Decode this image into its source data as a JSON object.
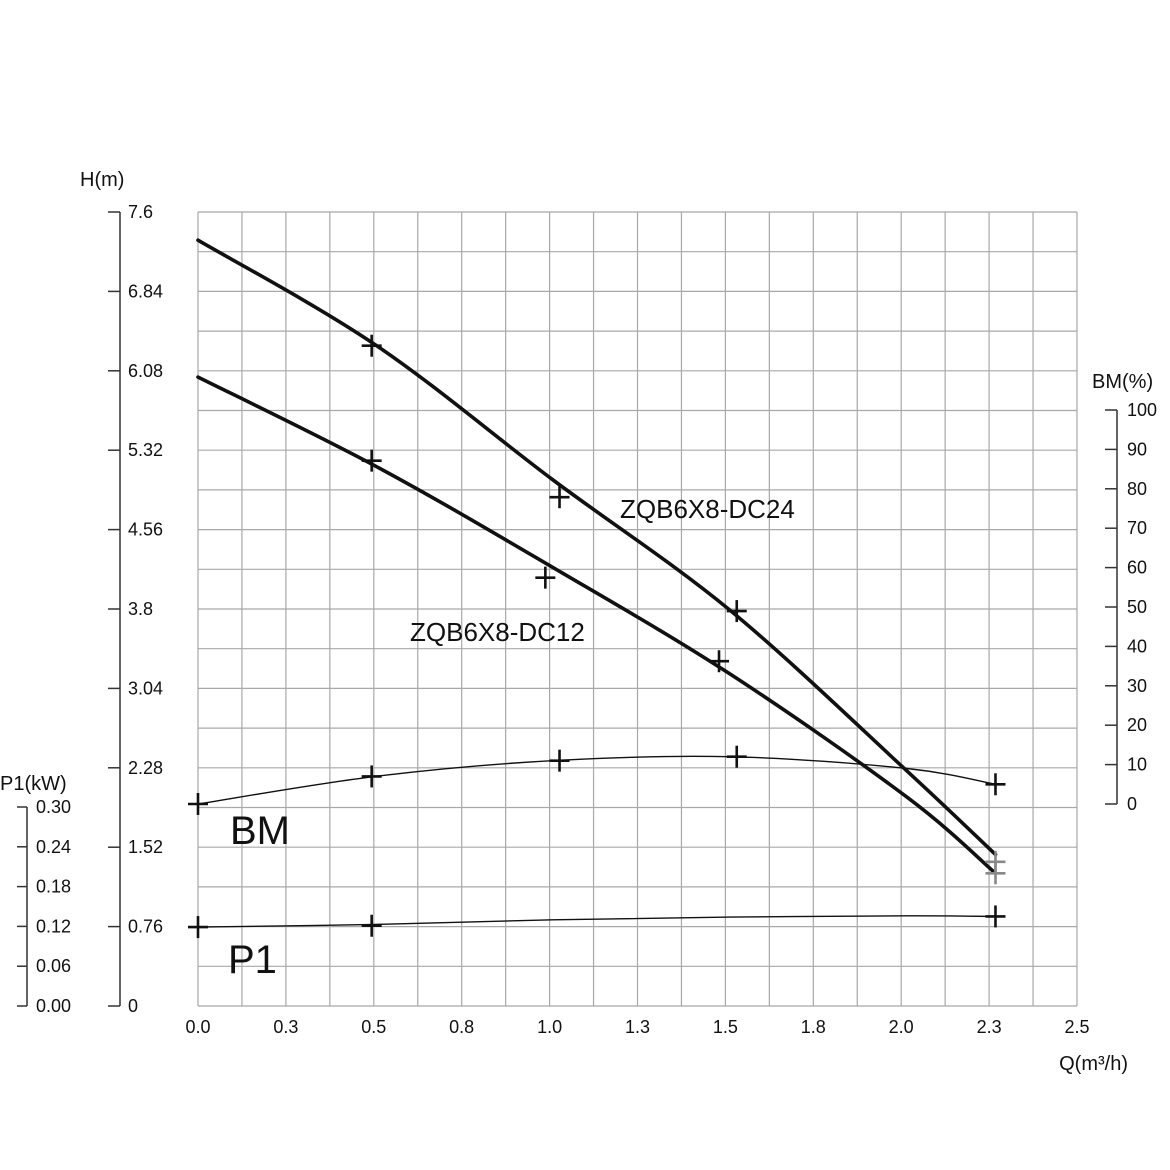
{
  "chart_data": {
    "type": "line",
    "x_axis": {
      "label": "Q(m³/h)",
      "range": [
        0,
        2.5
      ],
      "ticks": [
        "0.0",
        "0.3",
        "0.5",
        "0.8",
        "1.0",
        "1.3",
        "1.5",
        "1.8",
        "2.0",
        "2.3",
        "2.5"
      ]
    },
    "y_axis_head": {
      "label": "H(m)",
      "range": [
        0,
        7.6
      ],
      "ticks": [
        "7.6",
        "6.84",
        "6.08",
        "5.32",
        "4.56",
        "3.8",
        "3.04",
        "2.28",
        "1.52",
        "0.76",
        "0"
      ]
    },
    "y_axis_efficiency": {
      "label": "BM(%)",
      "range": [
        0,
        100
      ],
      "ticks": [
        "100",
        "90",
        "80",
        "70",
        "60",
        "50",
        "40",
        "30",
        "20",
        "10",
        "0"
      ]
    },
    "y_axis_power": {
      "label": "P1(kW)",
      "range": [
        0,
        0.3
      ],
      "ticks": [
        "0.30",
        "0.24",
        "0.18",
        "0.12",
        "0.06",
        "0.00"
      ]
    },
    "grid": true,
    "series": [
      {
        "name": "ZQB6X8-DC24",
        "axis": "head",
        "points": [
          [
            0.0,
            7.33
          ],
          [
            0.5,
            6.33
          ],
          [
            1.0,
            5.04
          ],
          [
            1.5,
            3.79
          ],
          [
            2.0,
            2.25
          ],
          [
            2.25,
            1.45
          ]
        ],
        "markers": [
          [
            0.49,
            6.32
          ],
          [
            1.02,
            4.87
          ],
          [
            1.52,
            3.78
          ],
          [
            2.25,
            1.38
          ]
        ]
      },
      {
        "name": "ZQB6X8-DC12",
        "axis": "head",
        "points": [
          [
            0.0,
            6.02
          ],
          [
            0.5,
            5.17
          ],
          [
            1.0,
            4.2
          ],
          [
            1.5,
            3.18
          ],
          [
            2.0,
            2.0
          ],
          [
            2.25,
            1.27
          ]
        ],
        "markers": [
          [
            0.49,
            5.22
          ],
          [
            0.98,
            4.1
          ],
          [
            1.47,
            3.3
          ],
          [
            2.25,
            1.27
          ]
        ]
      },
      {
        "name": "BM",
        "axis": "efficiency",
        "points": [
          [
            0.0,
            0
          ],
          [
            0.5,
            7
          ],
          [
            1.0,
            11
          ],
          [
            1.5,
            12
          ],
          [
            2.0,
            9
          ],
          [
            2.25,
            5
          ]
        ],
        "markers": [
          [
            0.0,
            0
          ],
          [
            0.49,
            7
          ],
          [
            1.02,
            11
          ],
          [
            1.52,
            12
          ],
          [
            2.25,
            5
          ]
        ]
      },
      {
        "name": "P1",
        "axis": "power",
        "points": [
          [
            0.0,
            0.119
          ],
          [
            0.5,
            0.123
          ],
          [
            1.0,
            0.13
          ],
          [
            1.5,
            0.134
          ],
          [
            2.0,
            0.136
          ],
          [
            2.25,
            0.135
          ]
        ],
        "markers": [
          [
            0.0,
            0.119
          ],
          [
            0.49,
            0.121
          ],
          [
            2.25,
            0.135
          ]
        ]
      }
    ]
  }
}
